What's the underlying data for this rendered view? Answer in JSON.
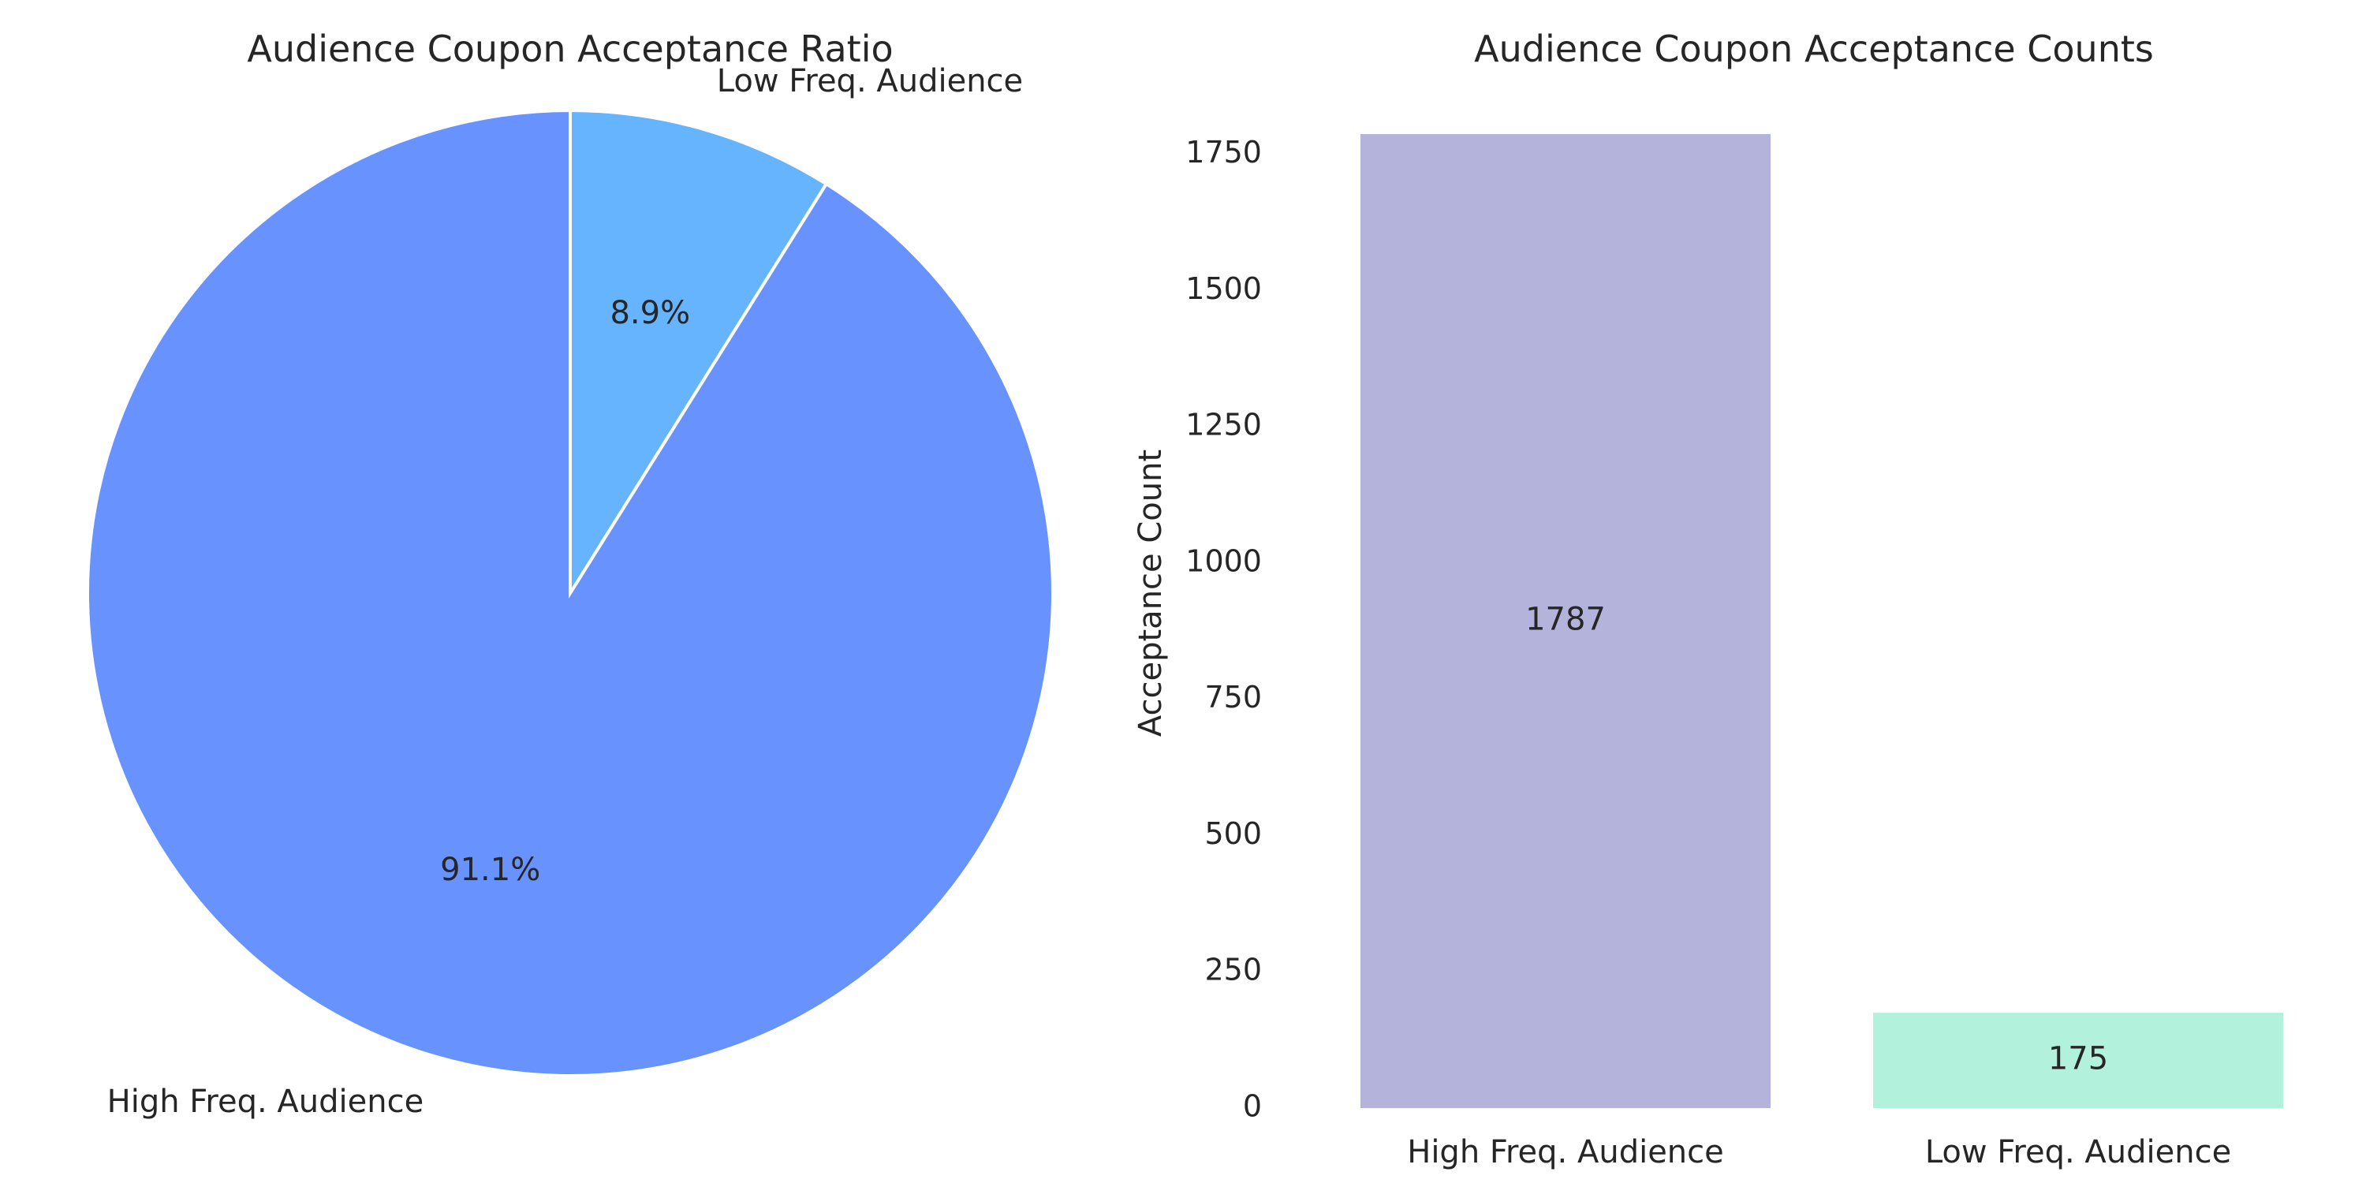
{
  "chart_data": [
    {
      "type": "pie",
      "title": "Audience Coupon Acceptance Ratio",
      "labels": [
        "High Freq. Audience",
        "Low Freq. Audience"
      ],
      "values": [
        91.1,
        8.9
      ],
      "percent_labels": [
        "91.1%",
        "8.9%"
      ],
      "colors": [
        "#6892fe",
        "#66b3fe"
      ],
      "start_angle_deg": 90,
      "direction": "counterclockwise"
    },
    {
      "type": "bar",
      "title": "Audience Coupon Acceptance Counts",
      "categories": [
        "High Freq. Audience",
        "Low Freq. Audience"
      ],
      "values": [
        1787,
        175
      ],
      "value_labels": [
        "1787",
        "175"
      ],
      "colors": [
        "#b4b3dc",
        "#b2f2dc"
      ],
      "xlabel": "",
      "ylabel": "Acceptance Count",
      "ylim": [
        0,
        1787
      ],
      "yticks": [
        0,
        250,
        500,
        750,
        1000,
        1250,
        1500,
        1750
      ],
      "grid": false
    }
  ]
}
